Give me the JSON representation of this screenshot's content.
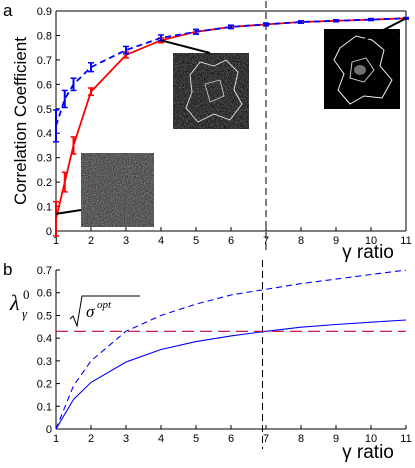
{
  "panels": [
    {
      "panel_label": "a",
      "chart_data": {
        "type": "line",
        "title": "",
        "xlabel": "γ ratio",
        "ylabel": "Correlation Coefficient",
        "xlim": [
          1,
          11
        ],
        "ylim": [
          0,
          0.9
        ],
        "xticks": [
          "1",
          "2",
          "3",
          "4",
          "5",
          "6",
          "7",
          "8",
          "9",
          "10",
          "11"
        ],
        "yticks": [
          "0",
          "0.1",
          "0.2",
          "0.3",
          "0.4",
          "0.5",
          "0.6",
          "0.7",
          "0.8",
          "0.9"
        ],
        "grid": false,
        "legend": "none",
        "vline_x": 7,
        "series": [
          {
            "color": "#ff0000",
            "style": "solid",
            "x": [
              1,
              1.25,
              1.5,
              2,
              3,
              4,
              5,
              6,
              7,
              8,
              9,
              10,
              11
            ],
            "y": [
              0.05,
              0.2,
              0.35,
              0.57,
              0.72,
              0.78,
              0.815,
              0.835,
              0.845,
              0.855,
              0.86,
              0.865,
              0.87
            ],
            "err": [
              0.07,
              0.04,
              0.035,
              0.015,
              0.012,
              0.01,
              0.008,
              0.006,
              0.005,
              0.004,
              0.004,
              0.003,
              0.003
            ]
          },
          {
            "color": "#0000ff",
            "style": "dashed",
            "x": [
              1,
              1.25,
              1.5,
              2,
              3,
              4,
              5,
              6,
              7,
              8,
              9,
              10,
              11
            ],
            "y": [
              0.43,
              0.54,
              0.6,
              0.67,
              0.74,
              0.79,
              0.815,
              0.835,
              0.845,
              0.855,
              0.86,
              0.865,
              0.87
            ],
            "err": [
              0.065,
              0.035,
              0.025,
              0.018,
              0.015,
              0.012,
              0.01,
              0.007,
              0.006,
              0.005,
              0.004,
              0.004,
              0.003
            ]
          }
        ]
      }
    },
    {
      "panel_label": "b",
      "chart_data": {
        "type": "line",
        "title": "",
        "xlabel": "γ ratio",
        "ylabel": "λ",
        "ylabel_super": "0",
        "ylabel_sub": "γ",
        "hline_label": "σ",
        "hline_label_super": "opt",
        "xlim": [
          1,
          11
        ],
        "ylim": [
          0,
          0.7
        ],
        "xticks": [
          "1",
          "2",
          "3",
          "4",
          "5",
          "6",
          "7",
          "8",
          "9",
          "10",
          "11"
        ],
        "yticks": [
          "0",
          "0.1",
          "0.2",
          "0.3",
          "0.4",
          "0.5",
          "0.6",
          "0.7"
        ],
        "grid": false,
        "legend": "none",
        "vline_x": 6.9,
        "hline_y": 0.43,
        "series": [
          {
            "color": "#0000ff",
            "style": "solid",
            "x": [
              1,
              1.5,
              2,
              3,
              4,
              5,
              6,
              7,
              8,
              9,
              10,
              11
            ],
            "y": [
              0,
              0.13,
              0.205,
              0.295,
              0.35,
              0.385,
              0.41,
              0.43,
              0.448,
              0.46,
              0.47,
              0.48
            ]
          },
          {
            "color": "#0000ff",
            "style": "dashed",
            "x": [
              1,
              1.5,
              2,
              3,
              4,
              5,
              6,
              7,
              8,
              9,
              10,
              11
            ],
            "y": [
              0,
              0.19,
              0.3,
              0.43,
              0.5,
              0.55,
              0.59,
              0.615,
              0.64,
              0.66,
              0.68,
              0.7
            ]
          },
          {
            "color": "#c0003a",
            "style": "longdash",
            "x": [
              1,
              11
            ],
            "y": [
              0.43,
              0.43
            ]
          }
        ]
      }
    }
  ],
  "insets": [
    {
      "name": "inset-noise",
      "anchor_x": 1,
      "anchor_y": 0.07
    },
    {
      "name": "inset-medium",
      "anchor_x": 4,
      "anchor_y": 0.78
    },
    {
      "name": "inset-high",
      "anchor_x": 11,
      "anchor_y": 0.87
    }
  ]
}
